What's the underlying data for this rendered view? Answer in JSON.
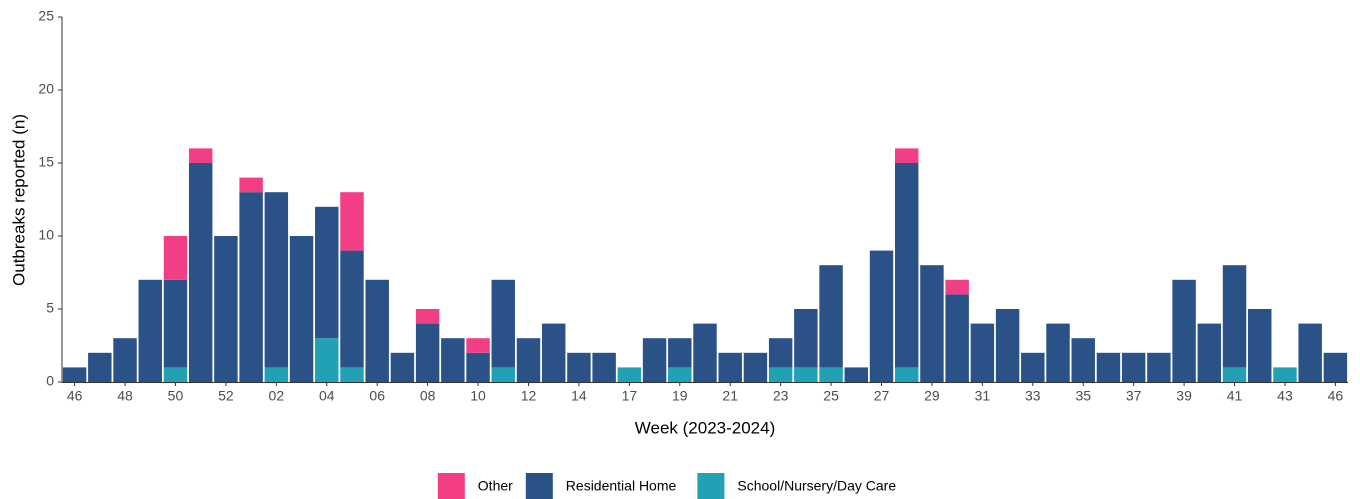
{
  "chart_data": {
    "type": "stacked-bar",
    "x_label": "Week (2023-2024)",
    "y_label": "Outbreaks reported (n)",
    "categories": [
      "46",
      null,
      "48",
      null,
      "50",
      null,
      "52",
      null,
      "02",
      null,
      "04",
      null,
      "06",
      null,
      "08",
      null,
      "10",
      null,
      "12",
      null,
      "14",
      null,
      "17",
      null,
      "19",
      null,
      "21",
      null,
      "23",
      null,
      "25",
      null,
      "27",
      null,
      "29",
      null,
      "31",
      null,
      "33",
      null,
      "35",
      null,
      "37",
      null,
      "39",
      null,
      "41",
      null,
      "43",
      null,
      "46"
    ],
    "series": [
      {
        "name": "Other",
        "color": "#f23e84",
        "values": [
          0,
          0,
          0,
          0,
          3,
          1,
          0,
          1,
          0,
          0,
          0,
          4,
          0,
          0,
          1,
          0,
          1,
          0,
          0,
          0,
          0,
          0,
          0,
          0,
          0,
          0,
          0,
          0,
          0,
          0,
          0,
          0,
          0,
          1,
          0,
          1,
          0,
          0,
          0,
          0,
          0,
          0,
          0,
          0,
          0,
          0,
          0,
          0,
          0,
          0,
          0
        ]
      },
      {
        "name": "Residential Home",
        "color": "#2a5287",
        "values": [
          1,
          2,
          3,
          7,
          6,
          15,
          10,
          13,
          12,
          10,
          9,
          8,
          7,
          2,
          4,
          3,
          2,
          6,
          3,
          4,
          2,
          2,
          0,
          3,
          2,
          4,
          2,
          2,
          2,
          4,
          7,
          1,
          9,
          14,
          8,
          6,
          4,
          5,
          2,
          4,
          3,
          2,
          2,
          2,
          7,
          4,
          7,
          5,
          0,
          4,
          2
        ]
      },
      {
        "name": "School/Nursery/Day Care",
        "color": "#22a0b4",
        "values": [
          0,
          0,
          0,
          0,
          1,
          0,
          0,
          0,
          1,
          0,
          3,
          1,
          0,
          0,
          0,
          0,
          0,
          1,
          0,
          0,
          0,
          0,
          1,
          0,
          1,
          0,
          0,
          0,
          1,
          1,
          1,
          0,
          0,
          1,
          0,
          0,
          0,
          0,
          0,
          0,
          0,
          0,
          0,
          0,
          0,
          0,
          1,
          0,
          1,
          0,
          0
        ]
      }
    ],
    "ylim": [
      0,
      25
    ],
    "yticks": [
      0,
      5,
      10,
      15,
      20,
      25
    ],
    "legend": "bottom"
  }
}
